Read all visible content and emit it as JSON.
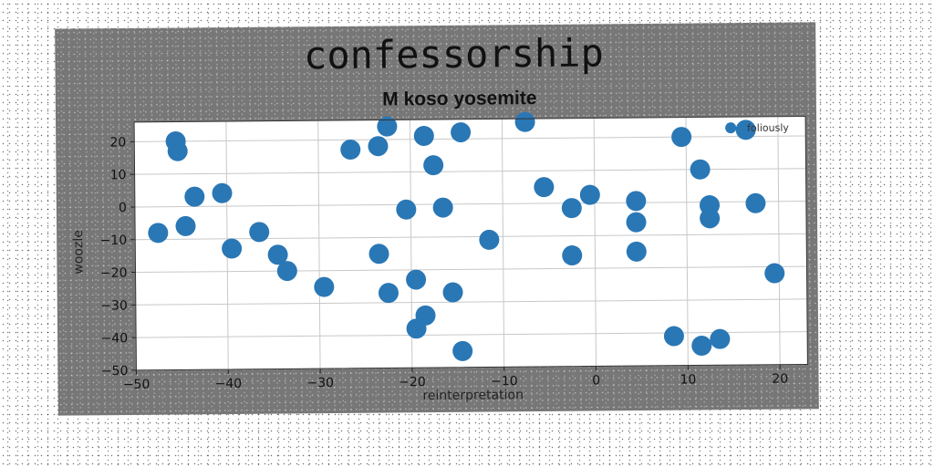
{
  "chart_data": {
    "type": "scatter",
    "title": "confessorship",
    "subtitle": "M koso yosemite",
    "xlabel": "reinterpretation",
    "ylabel": "woozle",
    "xlim": [
      -50,
      23
    ],
    "ylim": [
      -50,
      26
    ],
    "xticks": [
      -50,
      -40,
      -30,
      -20,
      -10,
      0,
      10,
      20
    ],
    "yticks": [
      20,
      10,
      0,
      -10,
      -20,
      -30,
      -40,
      -50
    ],
    "grid": true,
    "legend_position": "top-right",
    "color": "#2a77b5",
    "series": [
      {
        "name": "foliously",
        "points": [
          [
            -45.5,
            20
          ],
          [
            -45.3,
            17
          ],
          [
            -43.5,
            3
          ],
          [
            -40.5,
            4
          ],
          [
            -44.5,
            -6
          ],
          [
            -47.5,
            -8
          ],
          [
            -39.5,
            -13
          ],
          [
            -36.5,
            -8
          ],
          [
            -34.5,
            -15
          ],
          [
            -33.5,
            -20
          ],
          [
            -29.5,
            -25
          ],
          [
            -26.5,
            17
          ],
          [
            -23.5,
            18
          ],
          [
            -22.5,
            24
          ],
          [
            -18.5,
            21
          ],
          [
            -17.5,
            12
          ],
          [
            -14.5,
            22
          ],
          [
            -20.5,
            -1.5
          ],
          [
            -16.5,
            -1
          ],
          [
            -23.5,
            -15
          ],
          [
            -22.5,
            -27
          ],
          [
            -19.5,
            -23
          ],
          [
            -15.5,
            -27
          ],
          [
            -18.5,
            -34
          ],
          [
            -19.5,
            -38
          ],
          [
            -14.5,
            -45
          ],
          [
            -11.5,
            -11
          ],
          [
            -7.5,
            25
          ],
          [
            -5.5,
            5
          ],
          [
            -2.5,
            -1.5
          ],
          [
            -0.5,
            2.5
          ],
          [
            -2.5,
            -16
          ],
          [
            4.5,
            0.5
          ],
          [
            4.5,
            -6
          ],
          [
            4.5,
            -15
          ],
          [
            9.5,
            20
          ],
          [
            11.5,
            10
          ],
          [
            12.5,
            -1
          ],
          [
            12.5,
            -5
          ],
          [
            16.5,
            22
          ],
          [
            17.5,
            -0.5
          ],
          [
            19.5,
            -22
          ],
          [
            8.5,
            -41
          ],
          [
            11.5,
            -44
          ],
          [
            13.5,
            -42
          ]
        ]
      }
    ]
  }
}
